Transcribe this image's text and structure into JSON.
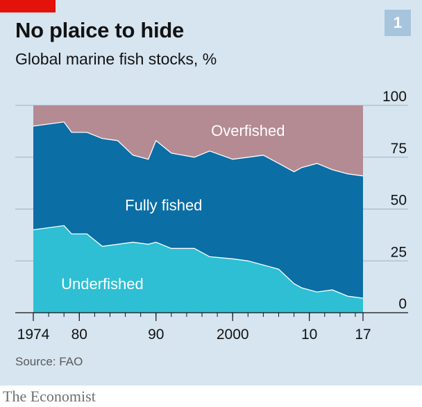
{
  "header": {
    "title": "No plaice to hide",
    "subtitle": "Global marine fish stocks, %",
    "chart_number": "1"
  },
  "source": "Source: FAO",
  "brand": "The Economist",
  "colors": {
    "background": "#d6e5f0",
    "underfished": "#2ebfd4",
    "fully_fished": "#0b6ea5",
    "overfished": "#b48b93",
    "axis": "#121212",
    "brand_red": "#e3120b"
  },
  "chart_data": {
    "type": "area",
    "stacked": true,
    "title": "No plaice to hide",
    "subtitle": "Global marine fish stocks, %",
    "x": [
      1974,
      1978,
      1979,
      1981,
      1983,
      1985,
      1987,
      1989,
      1990,
      1992,
      1995,
      1997,
      2000,
      2002,
      2004,
      2006,
      2008,
      2009,
      2011,
      2013,
      2015,
      2017
    ],
    "series": [
      {
        "name": "Underfished",
        "values": [
          40,
          42,
          38,
          38,
          32,
          33,
          34,
          33,
          34,
          31,
          31,
          27,
          26,
          25,
          23,
          21,
          14,
          12,
          10,
          11,
          8,
          7
        ]
      },
      {
        "name": "Fully fished",
        "values": [
          50,
          50,
          49,
          49,
          52,
          50,
          42,
          41,
          49,
          46,
          44,
          51,
          48,
          50,
          53,
          51,
          54,
          58,
          62,
          58,
          59,
          59
        ]
      },
      {
        "name": "Overfished",
        "values": [
          10,
          8,
          13,
          13,
          16,
          17,
          24,
          26,
          17,
          23,
          25,
          22,
          26,
          25,
          24,
          28,
          32,
          30,
          28,
          31,
          33,
          34
        ]
      }
    ],
    "ylim": [
      0,
      100
    ],
    "xlim": [
      1974,
      2017
    ],
    "y_ticks": [
      0,
      25,
      50,
      75,
      100
    ],
    "y_tick_labels": [
      "0",
      "25",
      "50",
      "75",
      "100"
    ],
    "x_ticks": [
      1974,
      1980,
      1990,
      2000,
      2010,
      2017
    ],
    "x_tick_labels": [
      "1974",
      "80",
      "90",
      "2000",
      "10",
      "17"
    ],
    "x_minor_ticks": [
      1974,
      1976,
      1978,
      1980,
      1982,
      1984,
      1986,
      1988,
      1990,
      1992,
      1994,
      1996,
      1998,
      2000,
      2002,
      2004,
      2006,
      2008,
      2010,
      2012,
      2014,
      2016
    ],
    "y_axis_position": "right",
    "grid": true,
    "area_labels": [
      {
        "series": "Overfished",
        "text": "Overfished",
        "x": 2002,
        "y": 88
      },
      {
        "series": "Fully fished",
        "text": "Fully fished",
        "x": 1991,
        "y": 52
      },
      {
        "series": "Underfished",
        "text": "Underfished",
        "x": 1983,
        "y": 14
      }
    ]
  }
}
